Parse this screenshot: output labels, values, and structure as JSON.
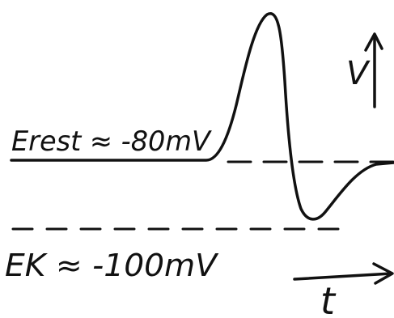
{
  "labels": {
    "rest": "Erest ≈ -80mV",
    "k": "EK ≈ -100mV",
    "v_axis": "V",
    "t_axis": "t"
  }
}
